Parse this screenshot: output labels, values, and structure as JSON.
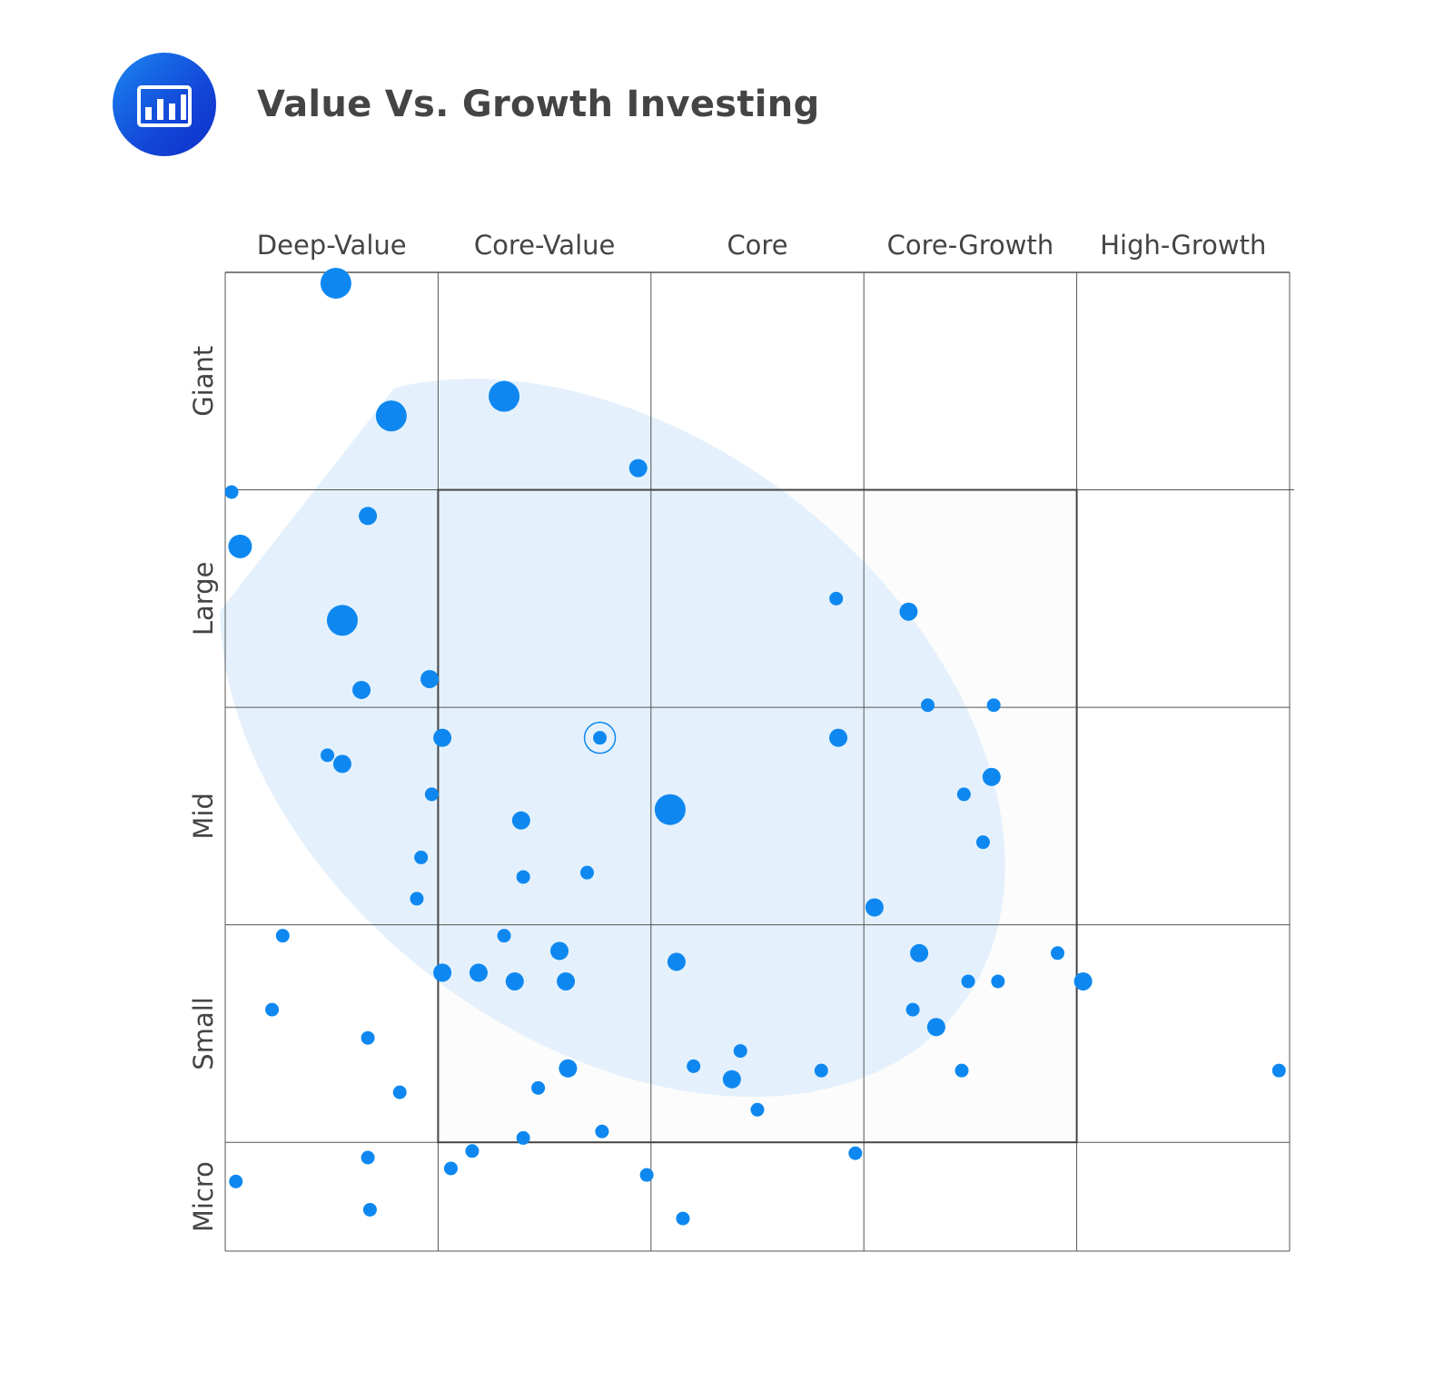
{
  "header": {
    "title": "Value Vs. Growth Investing",
    "icon": "bar-chart-icon"
  },
  "colors": {
    "dot": "#0e88f0",
    "zone": "#e4f1fc",
    "grid": "#555555",
    "box_fill": "#fcfcfc",
    "icon_bg": "#1a5fe0"
  },
  "chart_data": {
    "type": "scatter",
    "title": "Value Vs. Growth Investing",
    "x_categories": [
      "Deep-Value",
      "Core-Value",
      "Core",
      "Core-Growth",
      "High-Growth"
    ],
    "y_categories": [
      "Micro",
      "Small",
      "Mid",
      "Large",
      "Giant"
    ],
    "xlim": [
      0,
      5
    ],
    "ylim": [
      0,
      4.5
    ],
    "y_category_ranges": [
      [
        0,
        0.5
      ],
      [
        0.5,
        1.5
      ],
      [
        1.5,
        2.5
      ],
      [
        2.5,
        3.5
      ],
      [
        3.5,
        4.5
      ]
    ],
    "grid": true,
    "highlight_box": {
      "x": [
        1,
        4
      ],
      "y": [
        0.5,
        3.5
      ]
    },
    "ownership_zone": {
      "center": [
        1.82,
        2.36
      ]
    },
    "centroid": [
      1.76,
      2.36
    ],
    "points": [
      [
        0.52,
        4.45,
        4
      ],
      [
        0.78,
        3.84,
        4
      ],
      [
        1.31,
        3.93,
        4
      ],
      [
        1.94,
        3.6,
        2
      ],
      [
        0.03,
        3.49,
        1
      ],
      [
        0.67,
        3.38,
        2
      ],
      [
        0.07,
        3.24,
        3
      ],
      [
        0.55,
        2.9,
        4
      ],
      [
        0.64,
        2.58,
        2
      ],
      [
        0.96,
        2.63,
        2
      ],
      [
        2.87,
        3.0,
        1
      ],
      [
        3.21,
        2.94,
        2
      ],
      [
        3.3,
        2.51,
        1
      ],
      [
        3.61,
        2.51,
        1
      ],
      [
        1.02,
        2.36,
        2
      ],
      [
        1.76,
        2.36,
        1
      ],
      [
        2.88,
        2.36,
        2
      ],
      [
        0.48,
        2.28,
        1
      ],
      [
        0.55,
        2.24,
        2
      ],
      [
        3.6,
        2.18,
        2
      ],
      [
        0.97,
        2.1,
        1
      ],
      [
        3.47,
        2.1,
        1
      ],
      [
        2.09,
        2.03,
        4
      ],
      [
        1.39,
        1.98,
        2
      ],
      [
        3.56,
        1.88,
        1
      ],
      [
        0.92,
        1.81,
        1
      ],
      [
        1.7,
        1.74,
        1
      ],
      [
        1.4,
        1.72,
        1
      ],
      [
        0.9,
        1.62,
        1
      ],
      [
        3.05,
        1.58,
        2
      ],
      [
        0.27,
        1.45,
        1
      ],
      [
        1.31,
        1.45,
        1
      ],
      [
        1.57,
        1.38,
        2
      ],
      [
        3.26,
        1.37,
        2
      ],
      [
        3.91,
        1.37,
        1
      ],
      [
        2.12,
        1.33,
        2
      ],
      [
        1.02,
        1.28,
        2
      ],
      [
        1.19,
        1.28,
        2
      ],
      [
        1.36,
        1.24,
        2
      ],
      [
        1.6,
        1.24,
        2
      ],
      [
        3.49,
        1.24,
        1
      ],
      [
        3.63,
        1.24,
        1
      ],
      [
        4.03,
        1.24,
        2
      ],
      [
        0.22,
        1.11,
        1
      ],
      [
        3.23,
        1.11,
        1
      ],
      [
        3.34,
        1.03,
        2
      ],
      [
        0.67,
        0.98,
        1
      ],
      [
        2.42,
        0.92,
        1
      ],
      [
        1.61,
        0.84,
        2
      ],
      [
        2.2,
        0.85,
        1
      ],
      [
        2.8,
        0.83,
        1
      ],
      [
        3.46,
        0.83,
        1
      ],
      [
        4.95,
        0.83,
        1
      ],
      [
        2.38,
        0.79,
        2
      ],
      [
        0.82,
        0.73,
        1
      ],
      [
        1.47,
        0.75,
        1
      ],
      [
        2.5,
        0.65,
        1
      ],
      [
        1.77,
        0.55,
        1
      ],
      [
        1.4,
        0.52,
        1
      ],
      [
        2.96,
        0.45,
        1
      ],
      [
        1.16,
        0.46,
        1
      ],
      [
        0.67,
        0.43,
        1
      ],
      [
        1.06,
        0.38,
        1
      ],
      [
        0.05,
        0.32,
        1
      ],
      [
        1.98,
        0.35,
        1
      ],
      [
        0.68,
        0.19,
        1
      ],
      [
        2.15,
        0.15,
        1
      ]
    ]
  }
}
